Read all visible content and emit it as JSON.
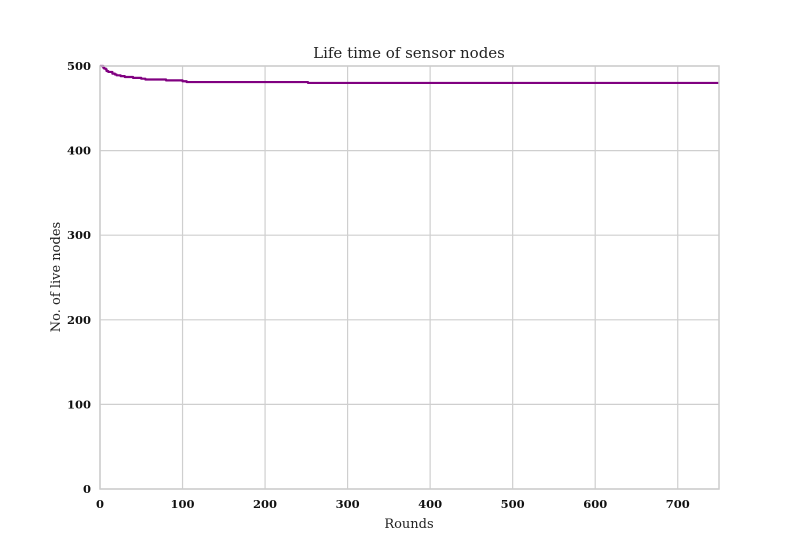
{
  "chart_data": {
    "type": "line",
    "title": "Life time of sensor nodes",
    "xlabel": "Rounds",
    "ylabel": "No. of live nodes",
    "xlim": [
      0,
      750
    ],
    "ylim": [
      0,
      500
    ],
    "xticks": [
      0,
      100,
      200,
      300,
      400,
      500,
      600,
      700
    ],
    "yticks": [
      0,
      100,
      200,
      300,
      400,
      500
    ],
    "grid": true,
    "series": [
      {
        "color": "#800080",
        "x": [
          0,
          4,
          5,
          7,
          8,
          10,
          12,
          15,
          18,
          20,
          25,
          30,
          35,
          40,
          45,
          50,
          55,
          60,
          70,
          80,
          90,
          100,
          105,
          150,
          200,
          250,
          252,
          300,
          400,
          500,
          600,
          700,
          750
        ],
        "y": [
          500,
          498,
          497,
          496,
          494,
          493,
          493,
          491,
          490,
          489,
          488,
          487,
          487,
          486,
          486,
          485,
          484,
          484,
          484,
          483,
          483,
          482,
          481,
          481,
          481,
          481,
          480,
          480,
          480,
          480,
          480,
          480,
          480
        ]
      }
    ]
  }
}
